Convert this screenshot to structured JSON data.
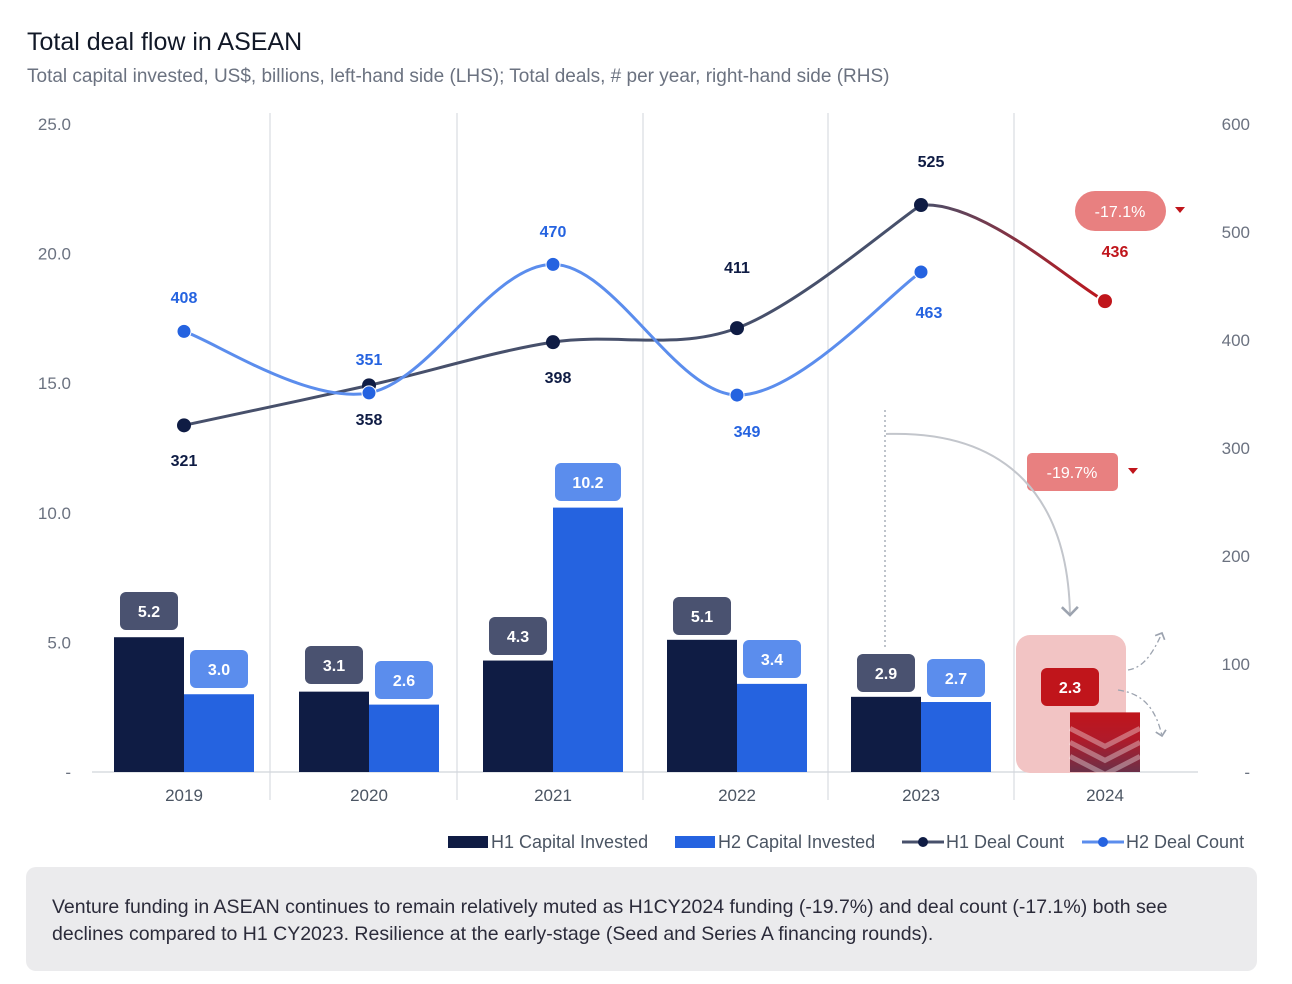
{
  "title": "Total deal flow in ASEAN",
  "subtitle": "Total capital invested, US$, billions, left-hand side (LHS); Total deals, # per year, right-hand side (RHS)",
  "note": "Venture funding in ASEAN continues to remain relatively muted as H1CY2024 funding (-19.7%) and deal count (-17.1%) both see declines compared to H1 CY2023. Resilience at the early-stage (Seed and Series A financing rounds).",
  "colors": {
    "h1": "#0f1c44",
    "h2": "#2563e0",
    "h1_line": "#47506b",
    "h2_line": "#5b8ded",
    "h1_label_bg": "#4a5270",
    "h2_label_bg": "#5b8ded",
    "decline": "#c0151b",
    "decline_badge": "#e88080",
    "highlight": "#f2c4c4",
    "grid": "#d1d5db"
  },
  "chart_data": {
    "type": "bar+line",
    "categories": [
      "2019",
      "2020",
      "2021",
      "2022",
      "2023",
      "2024"
    ],
    "left_axis": {
      "ylim": [
        0,
        25
      ],
      "ticks": [
        "-",
        "5.0",
        "10.0",
        "15.0",
        "20.0",
        "25.0"
      ]
    },
    "right_axis": {
      "ylim": [
        0,
        600
      ],
      "ticks": [
        "-",
        "100",
        "200",
        "300",
        "400",
        "500",
        "600"
      ]
    },
    "bars": [
      {
        "name": "H1 Capital Invested",
        "values": [
          5.2,
          3.1,
          4.3,
          5.1,
          2.9,
          2.3
        ],
        "labels": [
          "5.2",
          "3.1",
          "4.3",
          "5.1",
          "2.9",
          "2.3"
        ]
      },
      {
        "name": "H2 Capital Invested",
        "values": [
          3.0,
          2.6,
          10.2,
          3.4,
          2.7,
          null
        ],
        "labels": [
          "3.0",
          "2.6",
          "10.2",
          "3.4",
          "2.7",
          ""
        ]
      }
    ],
    "lines": [
      {
        "name": "H1 Deal Count",
        "values": [
          321,
          358,
          398,
          411,
          525,
          436
        ],
        "labels": [
          "321",
          "358",
          "398",
          "411",
          "525",
          "436"
        ]
      },
      {
        "name": "H2 Deal Count",
        "values": [
          408,
          351,
          470,
          349,
          463,
          null
        ],
        "labels": [
          "408",
          "351",
          "470",
          "349",
          "463",
          ""
        ]
      }
    ],
    "annotations": {
      "deal_change": "-17.1%",
      "funding_change": "-19.7%"
    }
  }
}
